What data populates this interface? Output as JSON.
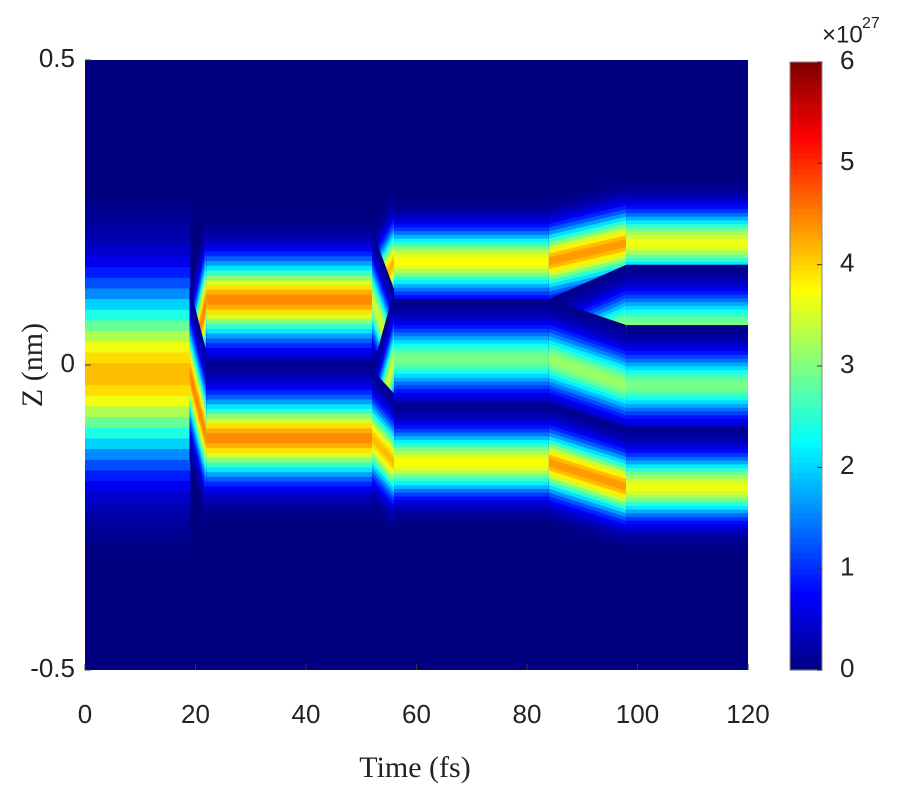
{
  "chart_data": {
    "type": "heatmap",
    "xlabel": "Time (fs)",
    "ylabel": "Z (nm)",
    "xlim": [
      0,
      120
    ],
    "xticks": [
      0,
      20,
      40,
      60,
      80,
      100,
      120
    ],
    "ylim": [
      -0.5,
      0.5
    ],
    "yticks": [
      -0.5,
      0,
      0.5
    ],
    "clim": [
      0,
      6
    ],
    "cticks": [
      0,
      1,
      2,
      3,
      4,
      5,
      6
    ],
    "colorbar_multiplier": "×10",
    "colorbar_exponent": "27",
    "colormap": "jet",
    "bands": [
      {
        "x": [
          0,
          19
        ],
        "z": [
          -0.015,
          -0.015
        ],
        "width": 0.1,
        "peak": 4.2
      },
      {
        "x": [
          19,
          22
        ],
        "z": [
          -0.015,
          0.107
        ],
        "width": 0.05,
        "peak": 4.5
      },
      {
        "x": [
          19,
          22
        ],
        "z": [
          -0.015,
          -0.12
        ],
        "width": 0.05,
        "peak": 4.5
      },
      {
        "x": [
          22,
          52
        ],
        "z": [
          0.107,
          0.107
        ],
        "width": 0.045,
        "peak": 4.5
      },
      {
        "x": [
          22,
          52
        ],
        "z": [
          -0.12,
          -0.12
        ],
        "width": 0.045,
        "peak": 4.5
      },
      {
        "x": [
          52,
          56
        ],
        "z": [
          0.107,
          0.17
        ],
        "width": 0.04,
        "peak": 4.2
      },
      {
        "x": [
          52,
          56
        ],
        "z": [
          0.107,
          0.01
        ],
        "width": 0.04,
        "peak": 3.5
      },
      {
        "x": [
          52,
          56
        ],
        "z": [
          -0.12,
          0.01
        ],
        "width": 0.04,
        "peak": 3.5
      },
      {
        "x": [
          52,
          56
        ],
        "z": [
          -0.12,
          -0.16
        ],
        "width": 0.04,
        "peak": 4.2
      },
      {
        "x": [
          56,
          84
        ],
        "z": [
          0.17,
          0.17
        ],
        "width": 0.035,
        "peak": 3.8
      },
      {
        "x": [
          56,
          84
        ],
        "z": [
          0.01,
          0.01
        ],
        "width": 0.035,
        "peak": 3.0
      },
      {
        "x": [
          56,
          84
        ],
        "z": [
          -0.16,
          -0.16
        ],
        "width": 0.035,
        "peak": 3.8
      },
      {
        "x": [
          84,
          98
        ],
        "z": [
          0.17,
          0.2
        ],
        "width": 0.035,
        "peak": 4.4
      },
      {
        "x": [
          84,
          98
        ],
        "z": [
          0.01,
          0.066
        ],
        "width": 0.035,
        "peak": 3.2
      },
      {
        "x": [
          84,
          98
        ],
        "z": [
          0.01,
          -0.033
        ],
        "width": 0.035,
        "peak": 3.2
      },
      {
        "x": [
          84,
          98
        ],
        "z": [
          -0.16,
          -0.2
        ],
        "width": 0.035,
        "peak": 4.4
      },
      {
        "x": [
          98,
          120
        ],
        "z": [
          0.2,
          0.2
        ],
        "width": 0.035,
        "peak": 3.7
      },
      {
        "x": [
          98,
          120
        ],
        "z": [
          0.066,
          0.066
        ],
        "width": 0.035,
        "peak": 3.0
      },
      {
        "x": [
          98,
          120
        ],
        "z": [
          -0.033,
          -0.033
        ],
        "width": 0.035,
        "peak": 3.0
      },
      {
        "x": [
          98,
          120
        ],
        "z": [
          -0.2,
          -0.2
        ],
        "width": 0.035,
        "peak": 3.7
      }
    ]
  }
}
